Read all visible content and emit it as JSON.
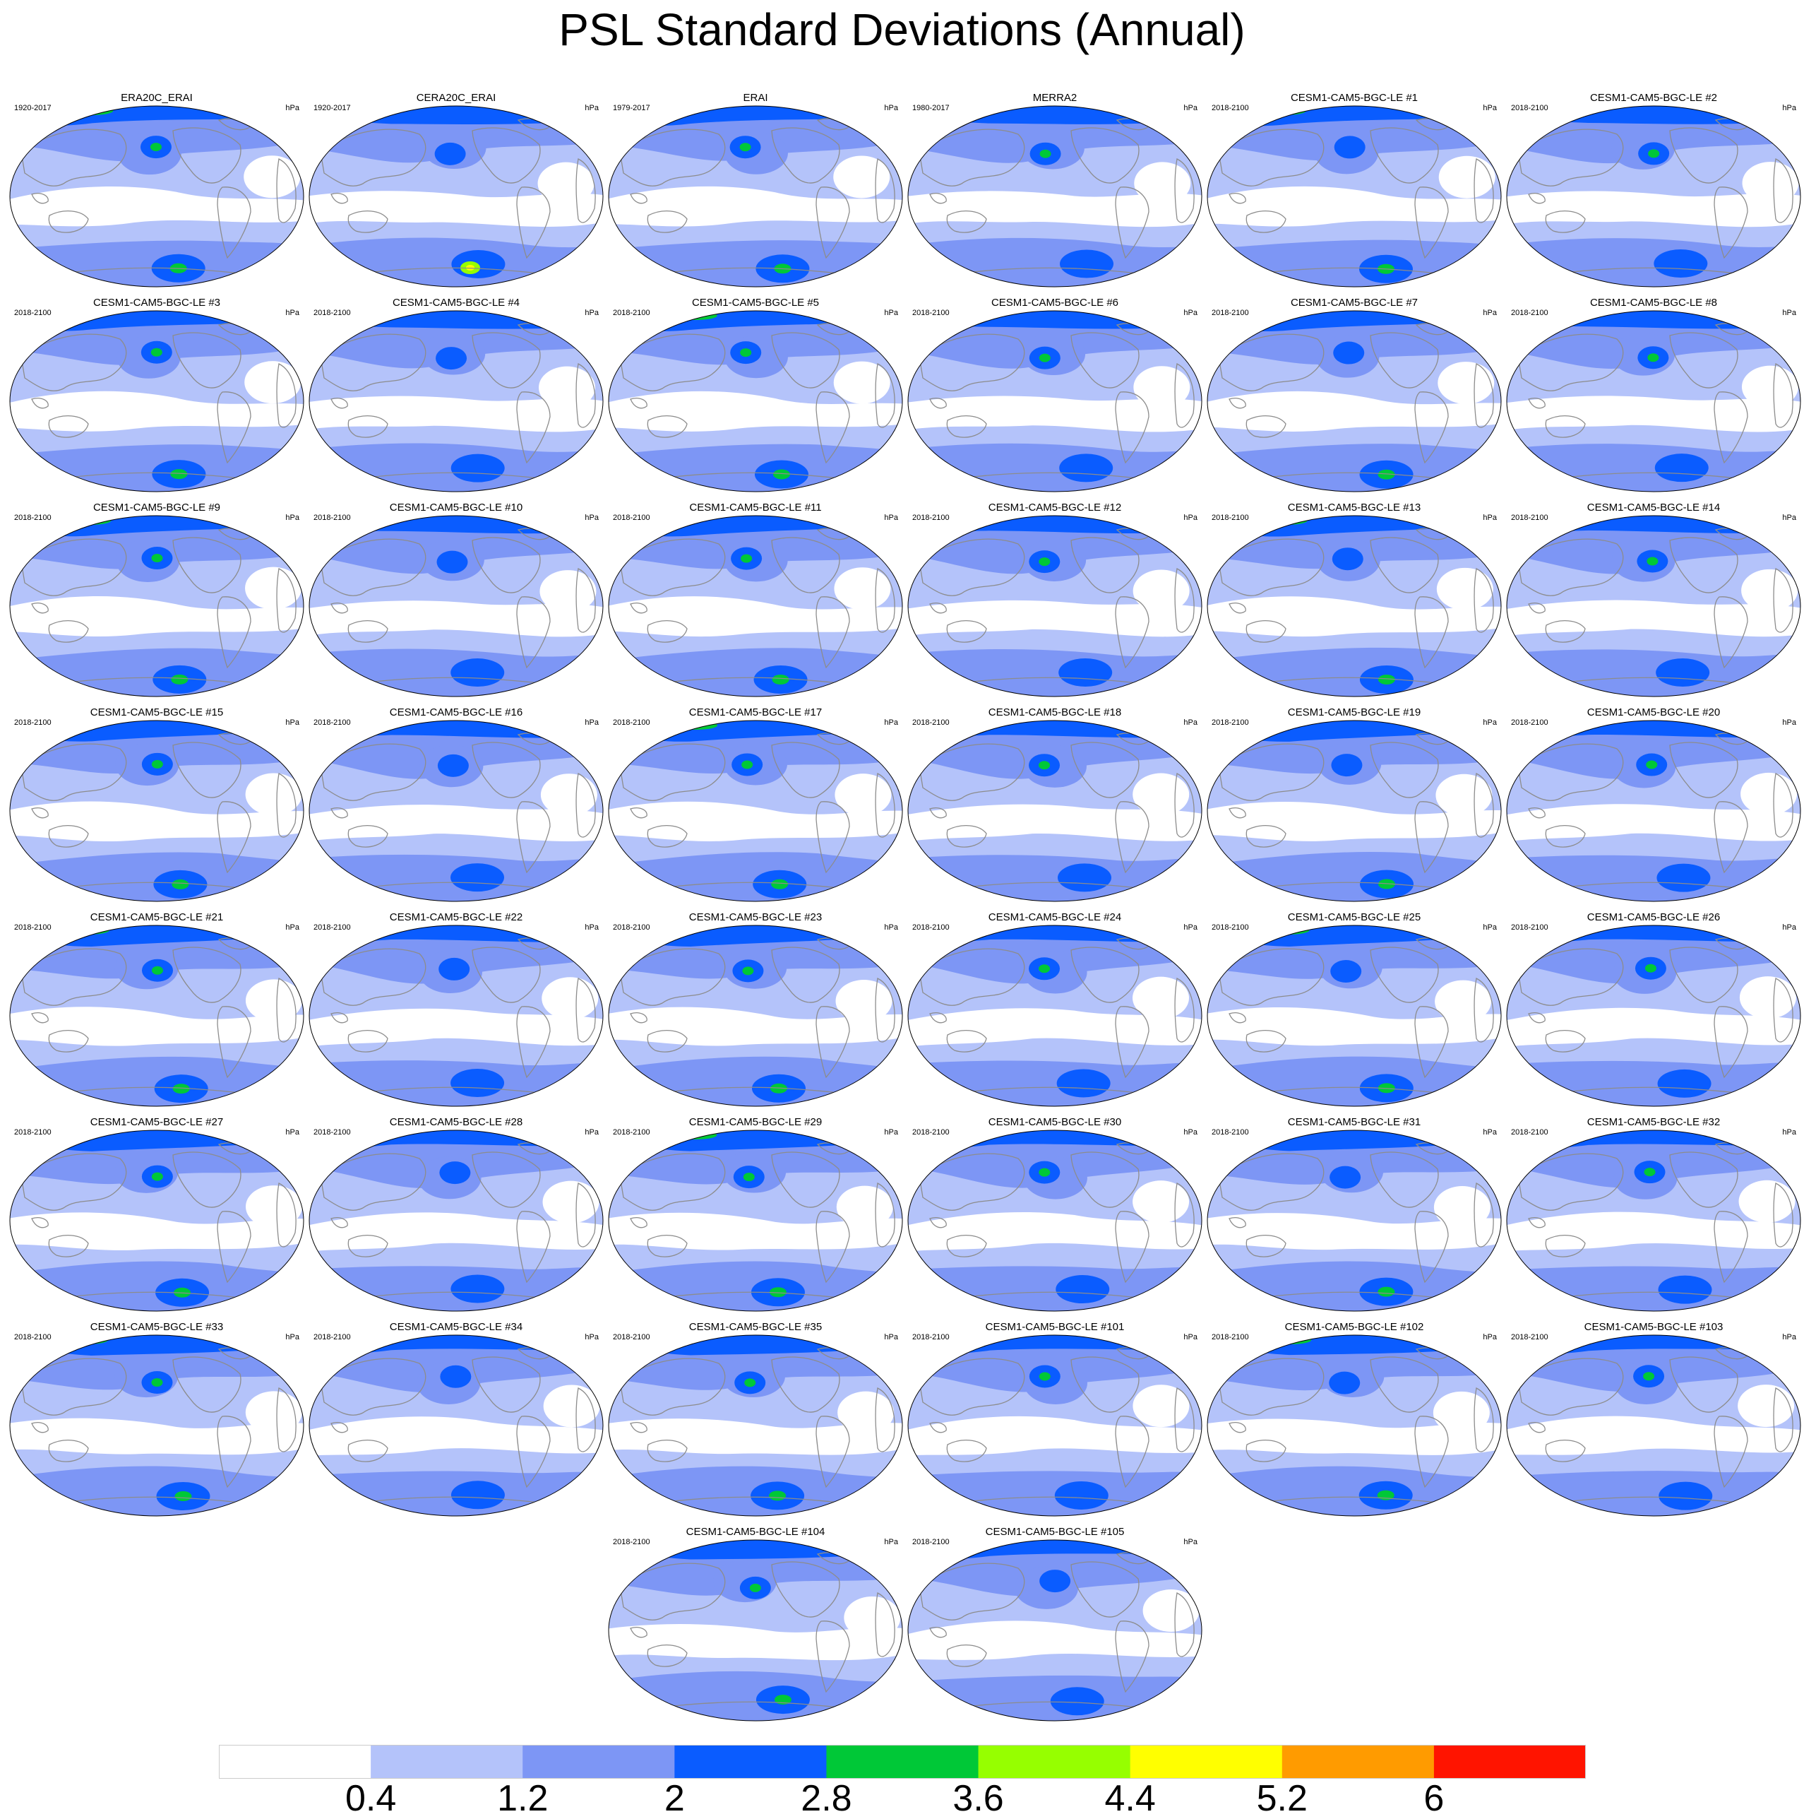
{
  "title": "PSL Standard Deviations (Annual)",
  "units": "hPa",
  "panels": [
    {
      "name": "ERA20C_ERAI",
      "years": "1920-2017"
    },
    {
      "name": "CERA20C_ERAI",
      "years": "1920-2017"
    },
    {
      "name": "ERAI",
      "years": "1979-2017"
    },
    {
      "name": "MERRA2",
      "years": "1980-2017"
    },
    {
      "name": "CESM1-CAM5-BGC-LE #1",
      "years": "2018-2100"
    },
    {
      "name": "CESM1-CAM5-BGC-LE #2",
      "years": "2018-2100"
    },
    {
      "name": "CESM1-CAM5-BGC-LE #3",
      "years": "2018-2100"
    },
    {
      "name": "CESM1-CAM5-BGC-LE #4",
      "years": "2018-2100"
    },
    {
      "name": "CESM1-CAM5-BGC-LE #5",
      "years": "2018-2100"
    },
    {
      "name": "CESM1-CAM5-BGC-LE #6",
      "years": "2018-2100"
    },
    {
      "name": "CESM1-CAM5-BGC-LE #7",
      "years": "2018-2100"
    },
    {
      "name": "CESM1-CAM5-BGC-LE #8",
      "years": "2018-2100"
    },
    {
      "name": "CESM1-CAM5-BGC-LE #9",
      "years": "2018-2100"
    },
    {
      "name": "CESM1-CAM5-BGC-LE #10",
      "years": "2018-2100"
    },
    {
      "name": "CESM1-CAM5-BGC-LE #11",
      "years": "2018-2100"
    },
    {
      "name": "CESM1-CAM5-BGC-LE #12",
      "years": "2018-2100"
    },
    {
      "name": "CESM1-CAM5-BGC-LE #13",
      "years": "2018-2100"
    },
    {
      "name": "CESM1-CAM5-BGC-LE #14",
      "years": "2018-2100"
    },
    {
      "name": "CESM1-CAM5-BGC-LE #15",
      "years": "2018-2100"
    },
    {
      "name": "CESM1-CAM5-BGC-LE #16",
      "years": "2018-2100"
    },
    {
      "name": "CESM1-CAM5-BGC-LE #17",
      "years": "2018-2100"
    },
    {
      "name": "CESM1-CAM5-BGC-LE #18",
      "years": "2018-2100"
    },
    {
      "name": "CESM1-CAM5-BGC-LE #19",
      "years": "2018-2100"
    },
    {
      "name": "CESM1-CAM5-BGC-LE #20",
      "years": "2018-2100"
    },
    {
      "name": "CESM1-CAM5-BGC-LE #21",
      "years": "2018-2100"
    },
    {
      "name": "CESM1-CAM5-BGC-LE #22",
      "years": "2018-2100"
    },
    {
      "name": "CESM1-CAM5-BGC-LE #23",
      "years": "2018-2100"
    },
    {
      "name": "CESM1-CAM5-BGC-LE #24",
      "years": "2018-2100"
    },
    {
      "name": "CESM1-CAM5-BGC-LE #25",
      "years": "2018-2100"
    },
    {
      "name": "CESM1-CAM5-BGC-LE #26",
      "years": "2018-2100"
    },
    {
      "name": "CESM1-CAM5-BGC-LE #27",
      "years": "2018-2100"
    },
    {
      "name": "CESM1-CAM5-BGC-LE #28",
      "years": "2018-2100"
    },
    {
      "name": "CESM1-CAM5-BGC-LE #29",
      "years": "2018-2100"
    },
    {
      "name": "CESM1-CAM5-BGC-LE #30",
      "years": "2018-2100"
    },
    {
      "name": "CESM1-CAM5-BGC-LE #31",
      "years": "2018-2100"
    },
    {
      "name": "CESM1-CAM5-BGC-LE #32",
      "years": "2018-2100"
    },
    {
      "name": "CESM1-CAM5-BGC-LE #33",
      "years": "2018-2100"
    },
    {
      "name": "CESM1-CAM5-BGC-LE #34",
      "years": "2018-2100"
    },
    {
      "name": "CESM1-CAM5-BGC-LE #35",
      "years": "2018-2100"
    },
    {
      "name": "CESM1-CAM5-BGC-LE #101",
      "years": "2018-2100"
    },
    {
      "name": "CESM1-CAM5-BGC-LE #102",
      "years": "2018-2100"
    },
    {
      "name": "CESM1-CAM5-BGC-LE #103",
      "years": "2018-2100"
    },
    {
      "name": "CESM1-CAM5-BGC-LE #104",
      "years": "2018-2100"
    },
    {
      "name": "CESM1-CAM5-BGC-LE #105",
      "years": "2018-2100"
    }
  ],
  "colorbar": {
    "levels": [
      "0.4",
      "1.2",
      "2",
      "2.8",
      "3.6",
      "4.4",
      "5.2",
      "6"
    ],
    "colors": [
      "#ffffff",
      "#b4c3fa",
      "#7d96f5",
      "#0a5cff",
      "#00c837",
      "#96ff00",
      "#ffff00",
      "#ff9b00",
      "#ff1400"
    ]
  },
  "map_colors": {
    "land_outline": "#8c8c8c",
    "map_border": "#000000",
    "low": "#ffffff",
    "light": "#b4c3fa",
    "medium": "#7d96f5",
    "strong": "#0a5cff",
    "peak": "#00c837",
    "extreme_yellow_green": "#96ff00",
    "extreme_yellow": "#ffff00"
  }
}
